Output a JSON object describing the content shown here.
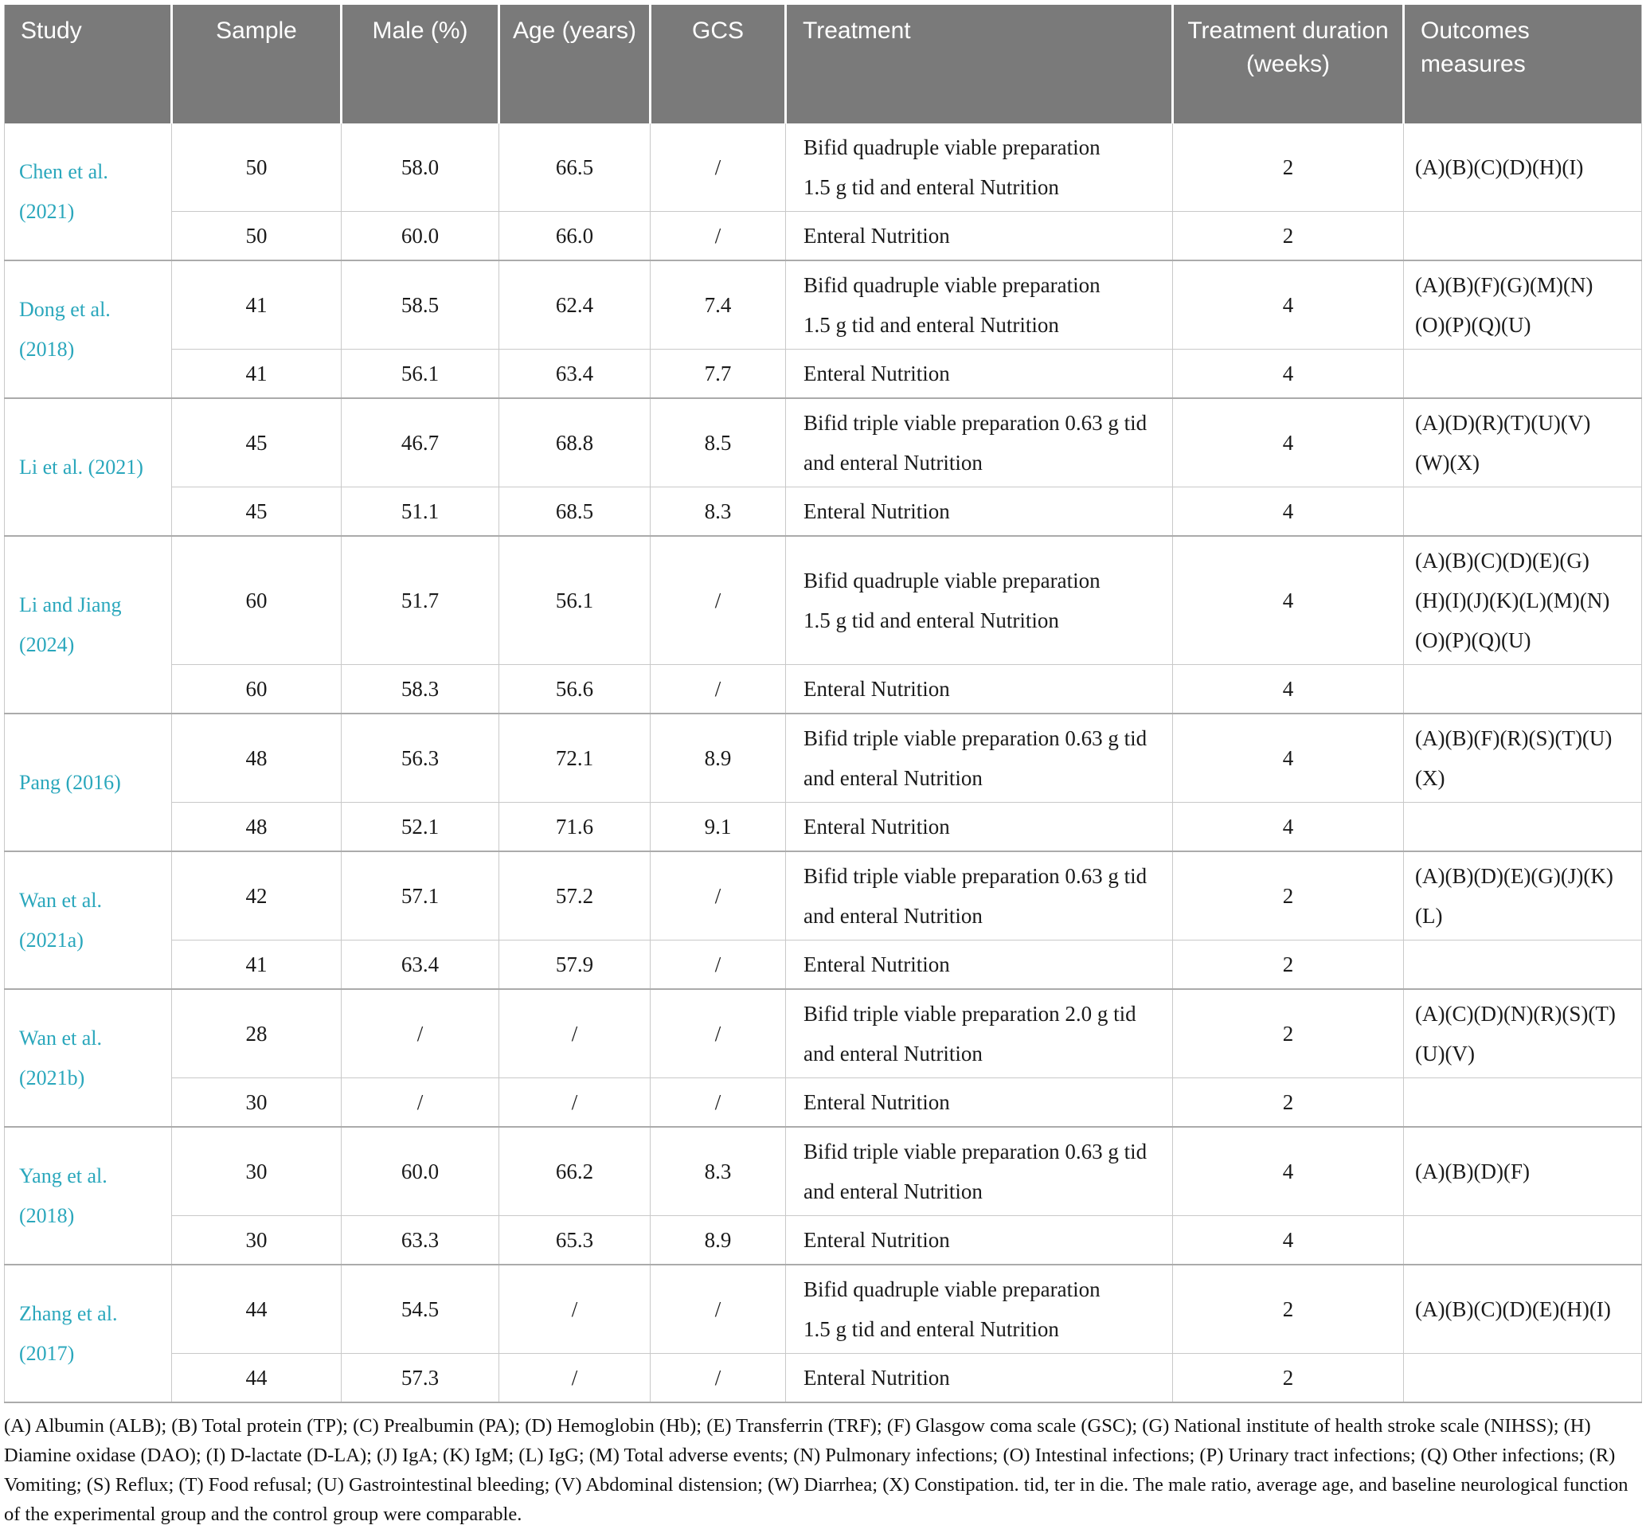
{
  "table": {
    "headers": [
      "Study",
      "Sample",
      "Male (%)",
      "Age (years)",
      "GCS",
      "Treatment",
      "Treatment duration (weeks)",
      "Outcomes measures"
    ],
    "groups": [
      {
        "study": "Chen et al. (2021)",
        "rows": [
          {
            "sample": "50",
            "male": "58.0",
            "age": "66.5",
            "gcs": "/",
            "treatment": "Bifid quadruple viable preparation\n1.5 g tid and enteral Nutrition",
            "duration": "2",
            "outcomes": "(A)(B)(C)(D)(H)(I)"
          },
          {
            "sample": "50",
            "male": "60.0",
            "age": "66.0",
            "gcs": "/",
            "treatment": "Enteral Nutrition",
            "duration": "2",
            "outcomes": ""
          }
        ]
      },
      {
        "study": "Dong et al. (2018)",
        "rows": [
          {
            "sample": "41",
            "male": "58.5",
            "age": "62.4",
            "gcs": "7.4",
            "treatment": "Bifid quadruple viable preparation\n1.5 g tid and enteral Nutrition",
            "duration": "4",
            "outcomes": "(A)(B)(F)(G)(M)(N)\n(O)(P)(Q)(U)"
          },
          {
            "sample": "41",
            "male": "56.1",
            "age": "63.4",
            "gcs": "7.7",
            "treatment": "Enteral Nutrition",
            "duration": "4",
            "outcomes": ""
          }
        ]
      },
      {
        "study": "Li et al. (2021)",
        "rows": [
          {
            "sample": "45",
            "male": "46.7",
            "age": "68.8",
            "gcs": "8.5",
            "treatment": "Bifid triple viable preparation 0.63 g tid\nand enteral Nutrition",
            "duration": "4",
            "outcomes": "(A)(D)(R)(T)(U)(V)\n(W)(X)"
          },
          {
            "sample": "45",
            "male": "51.1",
            "age": "68.5",
            "gcs": "8.3",
            "treatment": "Enteral Nutrition",
            "duration": "4",
            "outcomes": ""
          }
        ]
      },
      {
        "study": "Li and Jiang (2024)",
        "rows": [
          {
            "sample": "60",
            "male": "51.7",
            "age": "56.1",
            "gcs": "/",
            "treatment": "Bifid quadruple viable preparation\n1.5 g tid and enteral Nutrition",
            "duration": "4",
            "outcomes": "(A)(B)(C)(D)(E)(G)\n(H)(I)(J)(K)(L)(M)(N)\n(O)(P)(Q)(U)"
          },
          {
            "sample": "60",
            "male": "58.3",
            "age": "56.6",
            "gcs": "/",
            "treatment": "Enteral Nutrition",
            "duration": "4",
            "outcomes": ""
          }
        ]
      },
      {
        "study": "Pang (2016)",
        "rows": [
          {
            "sample": "48",
            "male": "56.3",
            "age": "72.1",
            "gcs": "8.9",
            "treatment": "Bifid triple viable preparation 0.63 g tid\nand enteral Nutrition",
            "duration": "4",
            "outcomes": "(A)(B)(F)(R)(S)(T)(U)\n(X)"
          },
          {
            "sample": "48",
            "male": "52.1",
            "age": "71.6",
            "gcs": "9.1",
            "treatment": "Enteral Nutrition",
            "duration": "4",
            "outcomes": ""
          }
        ]
      },
      {
        "study": "Wan et al. (2021a)",
        "rows": [
          {
            "sample": "42",
            "male": "57.1",
            "age": "57.2",
            "gcs": "/",
            "treatment": "Bifid triple viable preparation 0.63 g tid\nand enteral Nutrition",
            "duration": "2",
            "outcomes": "(A)(B)(D)(E)(G)(J)(K)\n(L)"
          },
          {
            "sample": "41",
            "male": "63.4",
            "age": "57.9",
            "gcs": "/",
            "treatment": "Enteral Nutrition",
            "duration": "2",
            "outcomes": ""
          }
        ]
      },
      {
        "study": "Wan et al. (2021b)",
        "rows": [
          {
            "sample": "28",
            "male": "/",
            "age": "/",
            "gcs": "/",
            "treatment": "Bifid triple viable preparation 2.0 g tid\nand enteral Nutrition",
            "duration": "2",
            "outcomes": "(A)(C)(D)(N)(R)(S)(T)\n(U)(V)"
          },
          {
            "sample": "30",
            "male": "/",
            "age": "/",
            "gcs": "/",
            "treatment": "Enteral Nutrition",
            "duration": "2",
            "outcomes": ""
          }
        ]
      },
      {
        "study": "Yang et al. (2018)",
        "rows": [
          {
            "sample": "30",
            "male": "60.0",
            "age": "66.2",
            "gcs": "8.3",
            "treatment": "Bifid triple viable preparation 0.63 g tid\nand enteral Nutrition",
            "duration": "4",
            "outcomes": "(A)(B)(D)(F)"
          },
          {
            "sample": "30",
            "male": "63.3",
            "age": "65.3",
            "gcs": "8.9",
            "treatment": "Enteral Nutrition",
            "duration": "4",
            "outcomes": ""
          }
        ]
      },
      {
        "study": "Zhang et al. (2017)",
        "rows": [
          {
            "sample": "44",
            "male": "54.5",
            "age": "/",
            "gcs": "/",
            "treatment": "Bifid quadruple viable preparation\n1.5 g tid and enteral Nutrition",
            "duration": "2",
            "outcomes": "(A)(B)(C)(D)(E)(H)(I)"
          },
          {
            "sample": "44",
            "male": "57.3",
            "age": "/",
            "gcs": "/",
            "treatment": "Enteral Nutrition",
            "duration": "2",
            "outcomes": ""
          }
        ]
      }
    ]
  },
  "footnote": "(A) Albumin (ALB); (B) Total protein (TP); (C) Prealbumin (PA); (D) Hemoglobin (Hb); (E) Transferrin (TRF); (F) Glasgow coma scale (GSC); (G) National institute of health stroke scale (NIHSS); (H) Diamine oxidase (DAO); (I) D-lactate (D-LA); (J) IgA; (K) IgM; (L) IgG; (M) Total adverse events; (N) Pulmonary infections; (O) Intestinal infections; (P) Urinary tract infections; (Q) Other infections; (R) Vomiting; (S) Reflux; (T) Food refusal; (U) Gastrointestinal bleeding; (V) Abdominal distension; (W) Diarrhea; (X) Constipation. tid, ter in die. The male ratio, average age, and baseline neurological function of the experimental group and the control group were comparable.",
  "colors": {
    "header_bg": "#7a7a7a",
    "header_text": "#ffffff",
    "study_link": "#2aa7bc",
    "body_text": "#1a1a1a",
    "inner_border": "#c9c9c9",
    "group_border": "#ababab"
  }
}
